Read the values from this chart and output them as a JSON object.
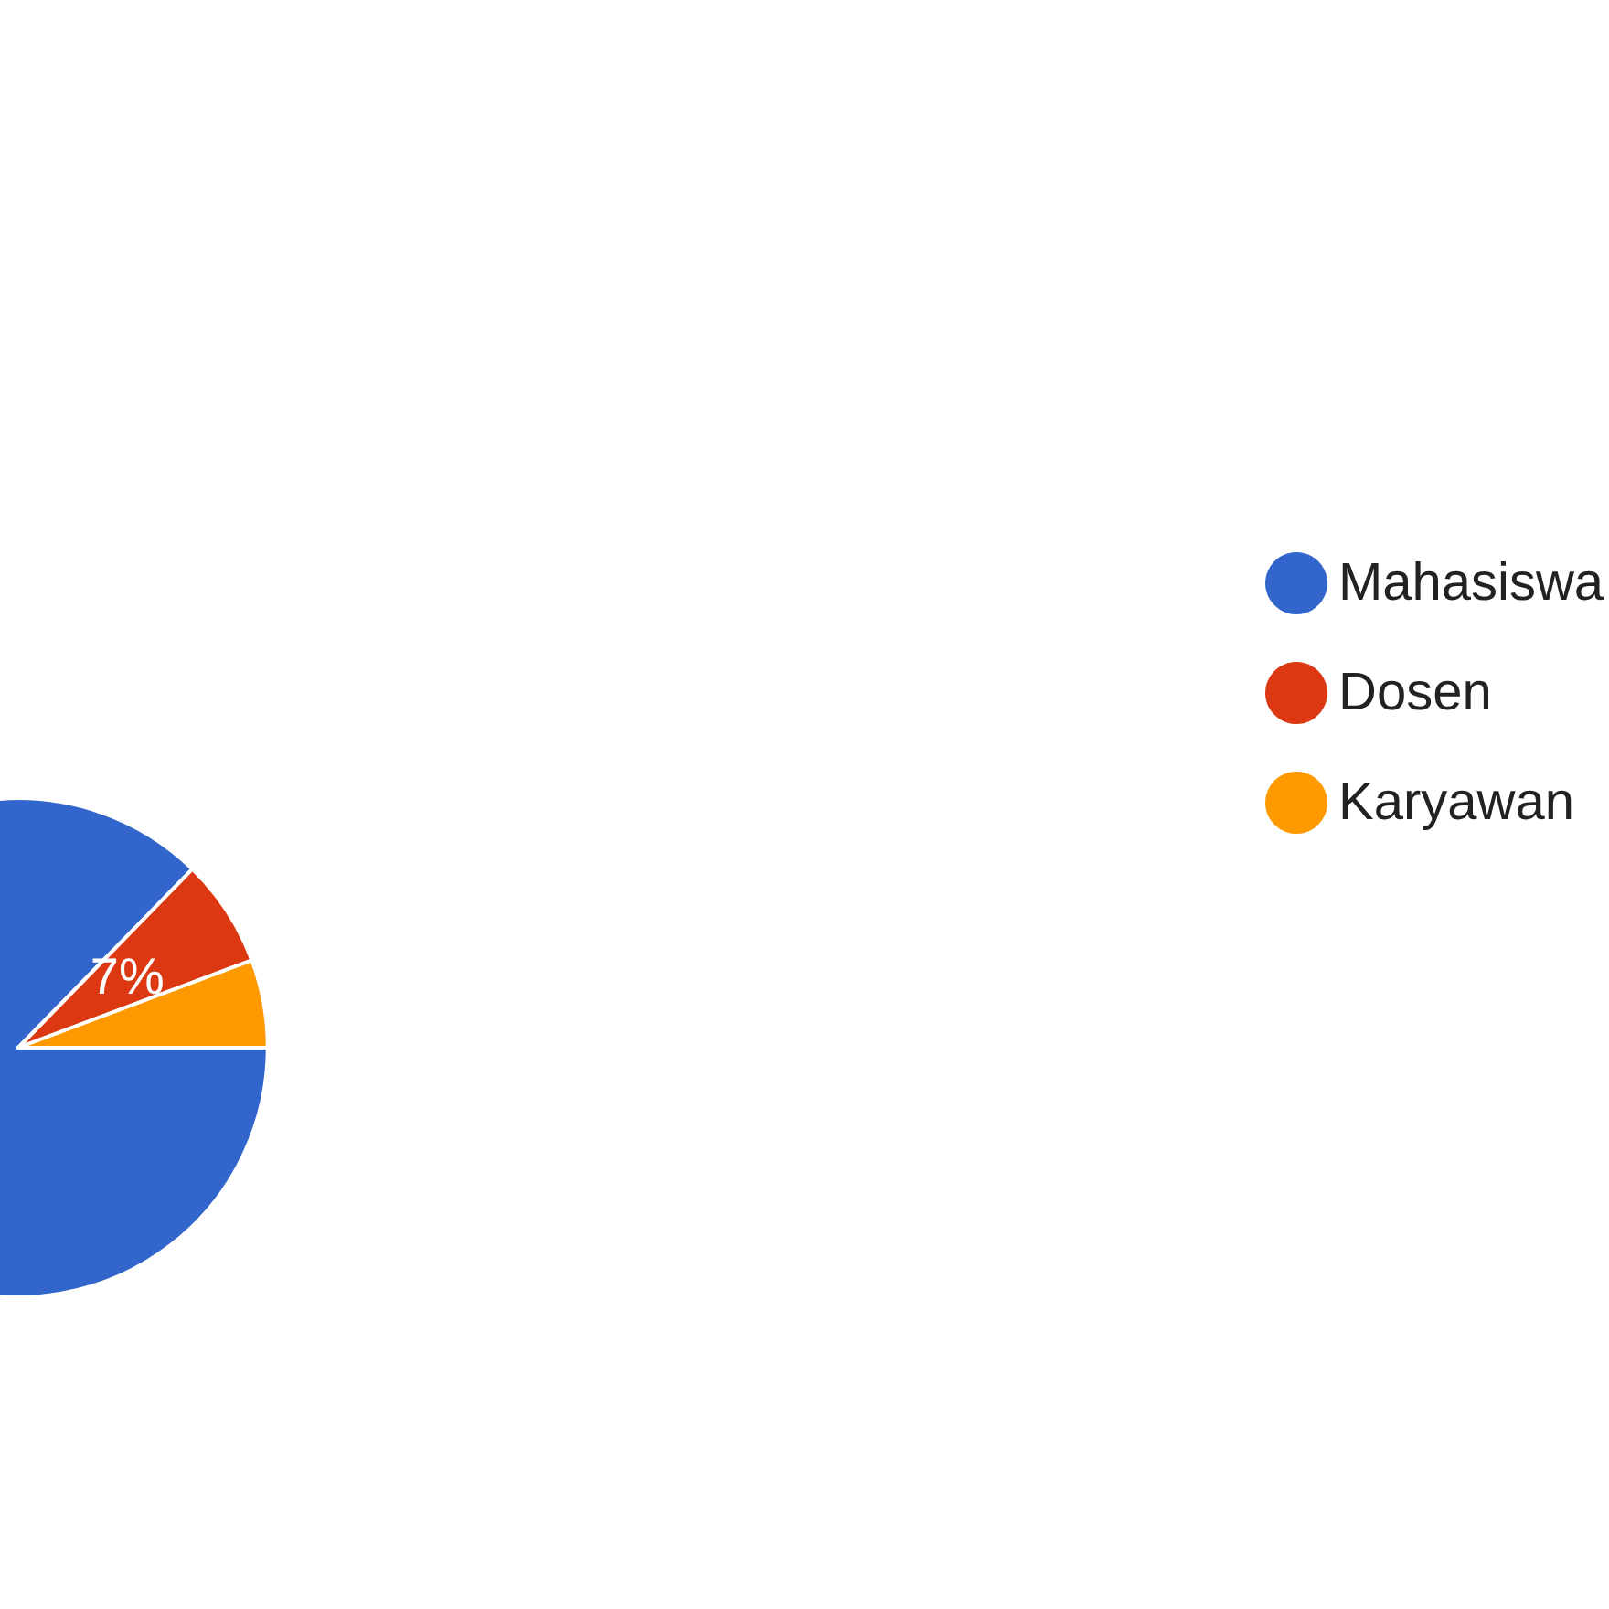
{
  "chart_data": {
    "type": "pie",
    "categories": [
      "Mahasiswa",
      "Dosen",
      "Karyawan"
    ],
    "values": [
      87.3,
      7,
      5.7
    ],
    "colors": [
      "#3366cc",
      "#dc3912",
      "#ff9900"
    ],
    "value_labels": [
      null,
      "7%",
      null
    ],
    "legend": "right"
  }
}
